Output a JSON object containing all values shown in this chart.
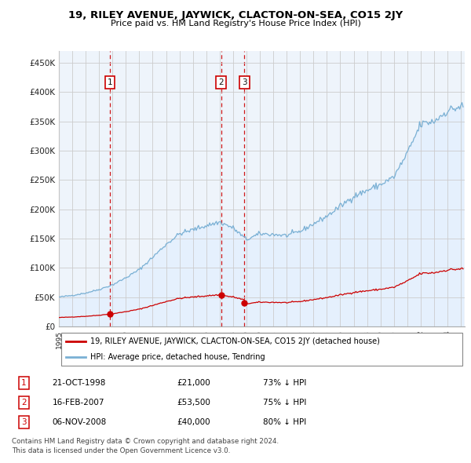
{
  "title": "19, RILEY AVENUE, JAYWICK, CLACTON-ON-SEA, CO15 2JY",
  "subtitle": "Price paid vs. HM Land Registry's House Price Index (HPI)",
  "ylabel_ticks": [
    "£0",
    "£50K",
    "£100K",
    "£150K",
    "£200K",
    "£250K",
    "£300K",
    "£350K",
    "£400K",
    "£450K"
  ],
  "ytick_values": [
    0,
    50000,
    100000,
    150000,
    200000,
    250000,
    300000,
    350000,
    400000,
    450000
  ],
  "xlim_start": 1995.0,
  "xlim_end": 2025.3,
  "ylim": [
    0,
    470000
  ],
  "sales": [
    {
      "date_year": 1998.8,
      "price": 21000,
      "label": "1"
    },
    {
      "date_year": 2007.1,
      "price": 53500,
      "label": "2"
    },
    {
      "date_year": 2008.85,
      "price": 40000,
      "label": "3"
    }
  ],
  "sale_labels": [
    {
      "num": 1,
      "date": "21-OCT-1998",
      "price": "£21,000",
      "pct": "73% ↓ HPI"
    },
    {
      "num": 2,
      "date": "16-FEB-2007",
      "price": "£53,500",
      "pct": "75% ↓ HPI"
    },
    {
      "num": 3,
      "date": "06-NOV-2008",
      "price": "£40,000",
      "pct": "80% ↓ HPI"
    }
  ],
  "legend_red_label": "19, RILEY AVENUE, JAYWICK, CLACTON-ON-SEA, CO15 2JY (detached house)",
  "legend_blue_label": "HPI: Average price, detached house, Tendring",
  "footer1": "Contains HM Land Registry data © Crown copyright and database right 2024.",
  "footer2": "This data is licensed under the Open Government Licence v3.0.",
  "red_color": "#cc0000",
  "blue_color": "#7ab0d4",
  "blue_fill_color": "#ddeeff",
  "vline_color": "#cc0000",
  "grid_color": "#cccccc",
  "box_color": "#cc0000",
  "chart_bg": "#eef4fb"
}
